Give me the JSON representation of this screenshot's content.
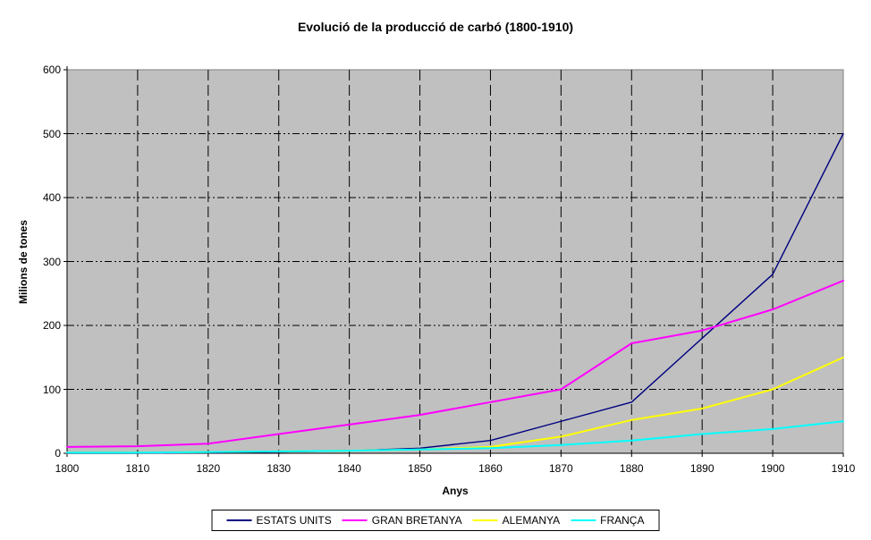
{
  "title": "Evolució de la producció de carbó (1800-1910)",
  "chart_data": {
    "type": "line",
    "title": "Evolució de la producció de carbó (1800-1910)",
    "xlabel": "Anys",
    "ylabel": "Milions de tones",
    "x": [
      1800,
      1810,
      1820,
      1830,
      1840,
      1850,
      1860,
      1870,
      1880,
      1890,
      1900,
      1910
    ],
    "series": [
      {
        "name": "ESTATS UNITS",
        "color": "#000080",
        "values": [
          0,
          0,
          1,
          2,
          4,
          8,
          20,
          50,
          80,
          180,
          280,
          500
        ]
      },
      {
        "name": "GRAN BRETANYA",
        "color": "#FF00FF",
        "values": [
          10,
          11,
          15,
          30,
          45,
          60,
          80,
          100,
          172,
          192,
          225,
          270
        ]
      },
      {
        "name": "ALEMANYA",
        "color": "#FFFF00",
        "values": [
          1,
          1,
          2,
          3,
          4,
          6,
          10,
          26,
          52,
          70,
          100,
          150
        ]
      },
      {
        "name": "FRANÇA",
        "color": "#00FFFF",
        "values": [
          1,
          1,
          2,
          3,
          4,
          6,
          8,
          13,
          20,
          30,
          38,
          50
        ]
      }
    ],
    "xlim": [
      1800,
      1910
    ],
    "ylim": [
      0,
      600
    ],
    "xticks": [
      1800,
      1810,
      1820,
      1830,
      1840,
      1850,
      1860,
      1870,
      1880,
      1890,
      1900,
      1910
    ],
    "yticks": [
      0,
      100,
      200,
      300,
      400,
      500,
      600
    ],
    "grid": true,
    "legend_position": "bottom",
    "colors": {
      "plot_background": "#C0C0C0",
      "plot_border": "#808080",
      "axis": "#000000",
      "gridline": "#000000",
      "text": "#000000",
      "page_background": "#FFFFFF"
    }
  }
}
